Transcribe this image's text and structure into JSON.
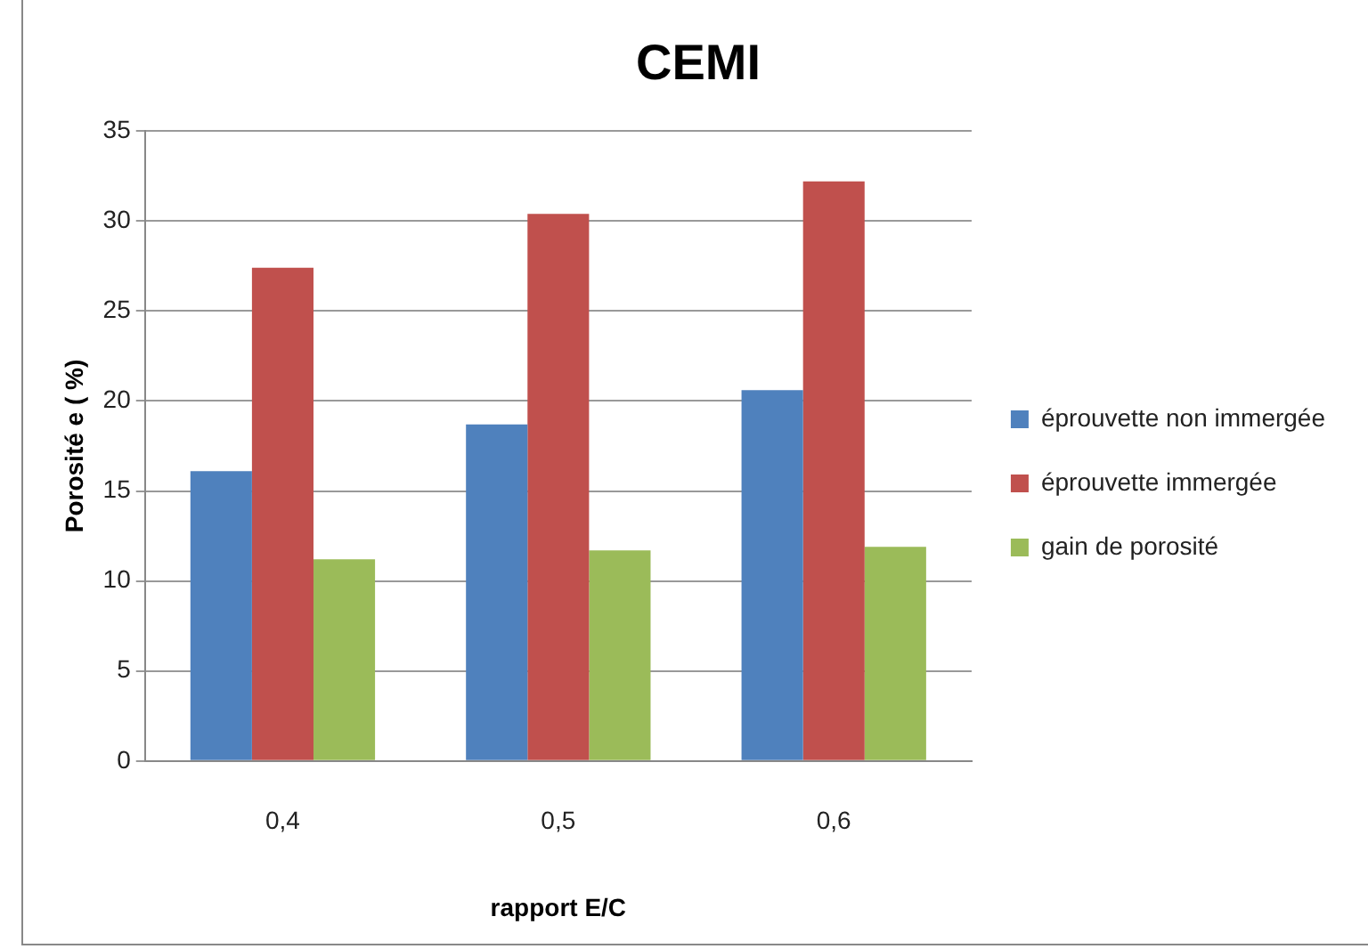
{
  "chart_data": {
    "type": "bar",
    "title": "CEMI",
    "xlabel": "rapport E/C",
    "ylabel": "Porosité e ( %)",
    "categories": [
      "0,4",
      "0,5",
      "0,6"
    ],
    "series": [
      {
        "name": "éprouvette non immergée",
        "color": "#4f81bd",
        "values": [
          16.1,
          18.7,
          20.6
        ]
      },
      {
        "name": "éprouvette immergée",
        "color": "#c0504d",
        "values": [
          27.4,
          30.4,
          32.2
        ]
      },
      {
        "name": "gain de porosité",
        "color": "#9bbb59",
        "values": [
          11.2,
          11.7,
          11.9
        ]
      }
    ],
    "ylim": [
      0,
      35
    ],
    "yticks": [
      0,
      5,
      10,
      15,
      20,
      25,
      30,
      35
    ],
    "grid": "y",
    "legend": "right"
  }
}
